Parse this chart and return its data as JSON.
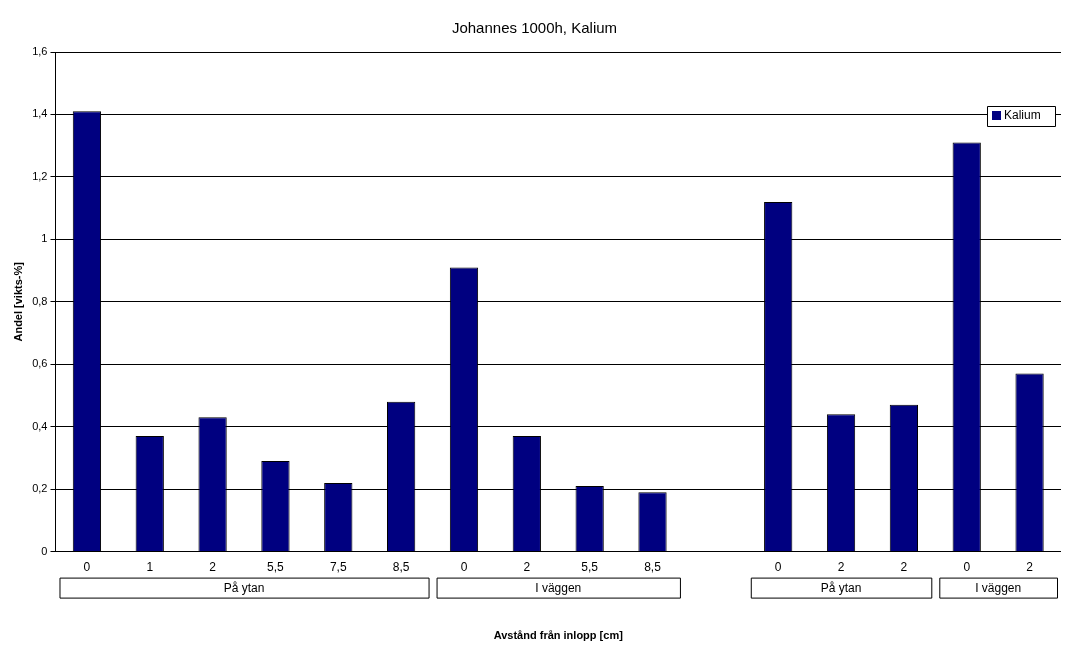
{
  "chart_data": {
    "type": "bar",
    "title": "Johannes 1000h, Kalium",
    "xlabel": "Avstånd från inlopp [cm]",
    "ylabel": "Andel [vikts-%]",
    "categories": [
      "0",
      "1",
      "2",
      "5,5",
      "7,5",
      "8,5",
      "0",
      "2",
      "5,5",
      "8,5",
      null,
      "0",
      "2",
      "2",
      "0",
      "2"
    ],
    "series": [
      {
        "name": "Kalium",
        "color": "#000080",
        "values": [
          1.41,
          0.37,
          0.43,
          0.29,
          0.22,
          0.48,
          0.91,
          0.37,
          0.21,
          0.19,
          null,
          1.12,
          0.44,
          0.47,
          1.31,
          0.57
        ]
      }
    ],
    "ylim": [
      0,
      1.6
    ],
    "yticks": [
      0,
      {
        "value": 0.2,
        "label": "0,2"
      },
      {
        "value": 0.4,
        "label": "0,4"
      },
      {
        "value": 0.6,
        "label": "0,6"
      },
      {
        "value": 0.8,
        "label": "0,8"
      },
      1,
      {
        "value": 1.2,
        "label": "1,2"
      },
      {
        "value": 1.4,
        "label": "1,4"
      },
      {
        "value": 1.6,
        "label": "1,6"
      }
    ],
    "annotations": [
      "På ytan",
      "I väggen",
      "På ytan",
      "I väggen"
    ],
    "grid": "y",
    "legend": "top right"
  }
}
